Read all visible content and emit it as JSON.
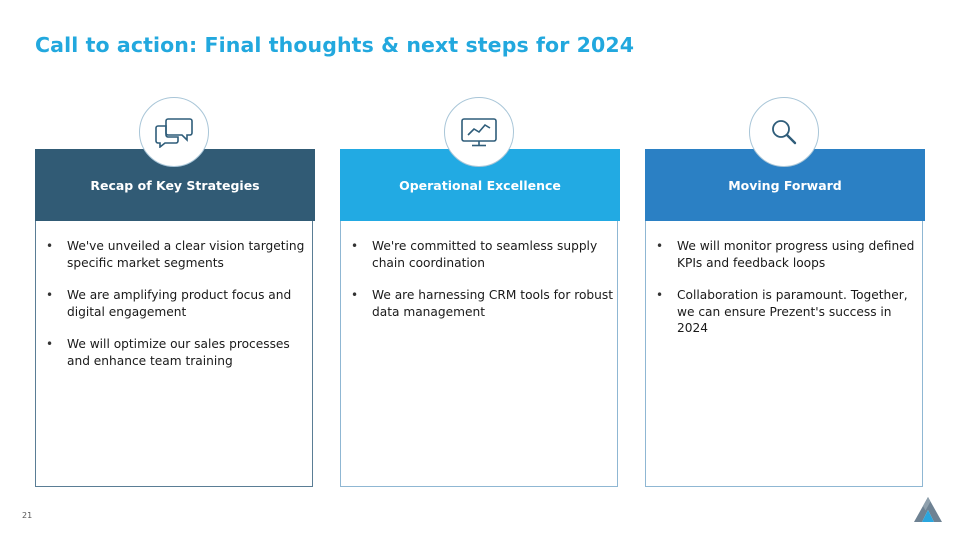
{
  "slide": {
    "title": "Call to action: Final thoughts & next steps for 2024",
    "page_number": "21"
  },
  "cards": [
    {
      "heading": "Recap of Key Strategies",
      "icon": "speech-bubbles-icon",
      "bullets": [
        "We've unveiled a clear vision targeting specific market segments",
        "We are amplifying product focus and digital engagement",
        "We will optimize our sales processes and enhance team training"
      ]
    },
    {
      "heading": "Operational Excellence",
      "icon": "monitor-chart-icon",
      "bullets": [
        "We're committed to seamless supply chain coordination",
        "We are harnessing CRM tools for robust data management"
      ]
    },
    {
      "heading": "Moving Forward",
      "icon": "magnifier-icon",
      "bullets": [
        "We will monitor progress using defined KPIs and feedback loops",
        "Collaboration is paramount. Together, we can ensure Prezent's success in 2024"
      ]
    }
  ],
  "colors": {
    "title": "#22a8de",
    "card1_header": "#315b75",
    "card2_header": "#22aae3",
    "card3_header": "#2b80c4",
    "icon_stroke": "#2f5d7a"
  }
}
